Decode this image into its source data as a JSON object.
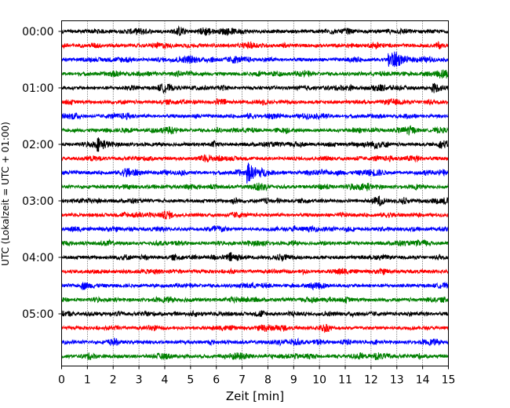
{
  "chart_data": {
    "type": "line",
    "subtype": "helicorder",
    "title": "",
    "xlabel": "Zeit  [min]",
    "ylabel": "UTC (Lokalzeit = UTC + 01:00)",
    "xlim": [
      0,
      15
    ],
    "x_ticks": [
      "0",
      "1",
      "2",
      "3",
      "4",
      "5",
      "6",
      "7",
      "8",
      "9",
      "10",
      "11",
      "12",
      "13",
      "14",
      "15"
    ],
    "y_ticks": [
      "00:00",
      "01:00",
      "02:00",
      "03:00",
      "04:00",
      "05:00"
    ],
    "row_minutes": 15,
    "row_count": 24,
    "color_cycle": [
      "#000000",
      "#ff0000",
      "#0000ff",
      "#008000"
    ],
    "grid": "vertical-dotted",
    "events": [
      {
        "row": 2,
        "minute": 12.7,
        "amplitude": 3.2
      },
      {
        "row": 4,
        "minute": 14.4,
        "amplitude": 1.8
      },
      {
        "row": 8,
        "minute": 1.4,
        "amplitude": 2.2
      },
      {
        "row": 10,
        "minute": 7.2,
        "amplitude": 3.8
      },
      {
        "row": 18,
        "minute": 0.8,
        "amplitude": 1.3
      }
    ]
  }
}
